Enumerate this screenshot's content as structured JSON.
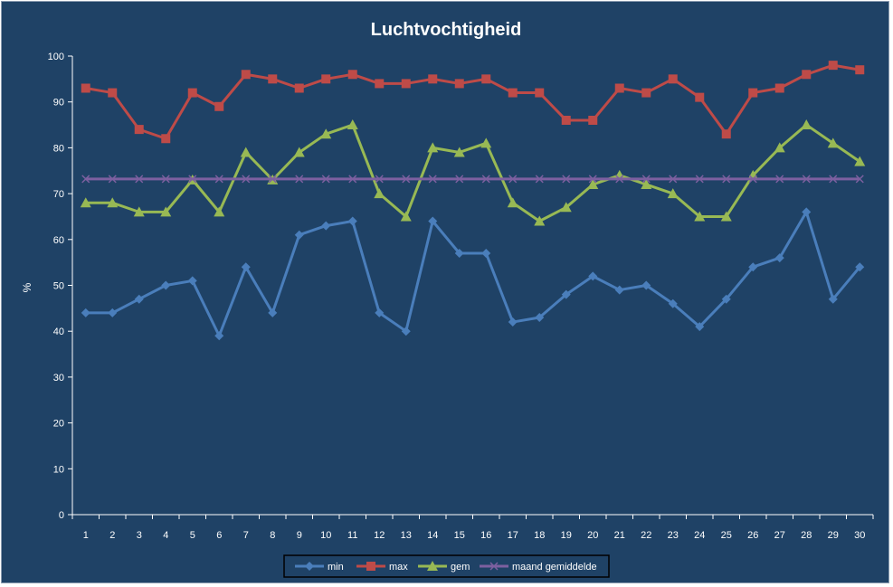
{
  "chart_data": {
    "type": "line",
    "title": "Luchtvochtigheid",
    "xlabel": "",
    "ylabel": "%",
    "ylim": [
      0,
      100
    ],
    "yticks": [
      0,
      10,
      20,
      30,
      40,
      50,
      60,
      70,
      80,
      90,
      100
    ],
    "x": [
      1,
      2,
      3,
      4,
      5,
      6,
      7,
      8,
      9,
      10,
      11,
      12,
      13,
      14,
      15,
      16,
      17,
      18,
      19,
      20,
      21,
      22,
      23,
      24,
      25,
      26,
      27,
      28,
      29,
      30
    ],
    "grid": false,
    "legend_position": "bottom",
    "series": [
      {
        "name": "min",
        "color": "#4a7ebb",
        "marker": "diamond",
        "values": [
          44,
          44,
          47,
          50,
          51,
          39,
          54,
          44,
          61,
          63,
          64,
          44,
          40,
          64,
          57,
          57,
          42,
          43,
          48,
          52,
          49,
          50,
          46,
          41,
          47,
          54,
          56,
          66,
          47,
          54
        ]
      },
      {
        "name": "max",
        "color": "#be4b48",
        "marker": "square",
        "values": [
          93,
          92,
          84,
          82,
          92,
          89,
          96,
          95,
          93,
          95,
          96,
          94,
          94,
          95,
          94,
          95,
          92,
          92,
          86,
          86,
          93,
          92,
          95,
          91,
          83,
          92,
          93,
          96,
          98,
          97
        ]
      },
      {
        "name": "gem",
        "color": "#98b954",
        "marker": "triangle",
        "values": [
          68,
          68,
          66,
          66,
          73,
          66,
          79,
          73,
          79,
          83,
          85,
          70,
          65,
          80,
          79,
          81,
          68,
          64,
          67,
          72,
          74,
          72,
          70,
          65,
          65,
          74,
          80,
          85,
          81,
          77
        ]
      },
      {
        "name": "maand gemiddelde",
        "color": "#7d60a0",
        "marker": "x",
        "values": [
          73.2,
          73.2,
          73.2,
          73.2,
          73.2,
          73.2,
          73.2,
          73.2,
          73.2,
          73.2,
          73.2,
          73.2,
          73.2,
          73.2,
          73.2,
          73.2,
          73.2,
          73.2,
          73.2,
          73.2,
          73.2,
          73.2,
          73.2,
          73.2,
          73.2,
          73.2,
          73.2,
          73.2,
          73.2,
          73.2
        ]
      }
    ]
  }
}
